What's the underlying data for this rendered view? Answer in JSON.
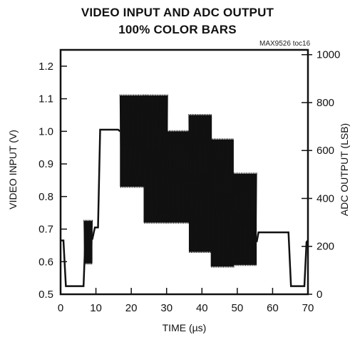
{
  "chart_data": {
    "type": "line",
    "title": "VIDEO INPUT AND ADC OUTPUT",
    "subtitle": "100% COLOR BARS",
    "source_tag": "MAX9526 toc16",
    "xlabel": "TIME (µs)",
    "ylabel": "VIDEO INPUT (V)",
    "ylabel_right": "ADC OUTPUT (LSB)",
    "xlim": [
      0,
      70
    ],
    "ylim": [
      0.5,
      1.25
    ],
    "ylim_right": [
      0,
      1020
    ],
    "x_ticks": [
      0,
      10,
      20,
      30,
      40,
      50,
      60,
      70
    ],
    "y_ticks": [
      0.5,
      0.6,
      0.7,
      0.8,
      0.9,
      1.0,
      1.1,
      1.2
    ],
    "y_ticks_right": [
      0,
      200,
      400,
      600,
      800,
      1000
    ],
    "grid": false,
    "series": [
      {
        "baseline_segments": [
          [
            0,
            0.665
          ],
          [
            0.8,
            0.665
          ],
          [
            1.5,
            0.525
          ],
          [
            6.5,
            0.525
          ],
          [
            7.0,
            0.67
          ],
          [
            9.0,
            0.67
          ],
          [
            9.7,
            0.705
          ],
          [
            10.6,
            0.705
          ],
          [
            11.2,
            1.005
          ],
          [
            16.3,
            1.005
          ],
          [
            16.8,
            1.0
          ]
        ],
        "bursts": [
          {
            "x0": 6.6,
            "x1": 9.0,
            "center": 0.66,
            "amplitude": 0.065
          },
          {
            "x0": 16.8,
            "x1": 24.5,
            "center": 0.97,
            "amplitude": 0.14
          },
          {
            "x0": 23.5,
            "x1": 30.3,
            "center": 0.915,
            "amplitude": 0.195
          },
          {
            "x0": 29.8,
            "x1": 36.5,
            "center": 0.86,
            "amplitude": 0.14
          },
          {
            "x0": 36.3,
            "x1": 42.8,
            "center": 0.84,
            "amplitude": 0.21
          },
          {
            "x0": 42.5,
            "x1": 49.0,
            "center": 0.78,
            "amplitude": 0.195
          },
          {
            "x0": 48.7,
            "x1": 55.5,
            "center": 0.73,
            "amplitude": 0.14
          }
        ],
        "tail_segments": [
          [
            55.5,
            0.66
          ],
          [
            56.0,
            0.69
          ],
          [
            64.5,
            0.69
          ],
          [
            65.2,
            0.525
          ],
          [
            69.0,
            0.525
          ],
          [
            69.6,
            0.66
          ],
          [
            70,
            0.665
          ]
        ]
      }
    ]
  }
}
